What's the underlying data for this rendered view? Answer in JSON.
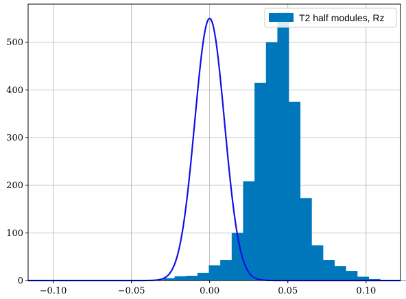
{
  "chart_data": {
    "type": "bar",
    "legend": {
      "label": "T2 half modules, Rz",
      "placement": "top-right"
    },
    "colors": {
      "bars": "#0077bb",
      "fit": "#1010e6",
      "grid": "#b0b0b0",
      "axis": "#000000"
    },
    "grid": true,
    "xlim": [
      -0.116,
      0.122
    ],
    "ylim": [
      0,
      580
    ],
    "x_ticks": [
      {
        "value": -0.1,
        "label": "−0.10"
      },
      {
        "value": -0.05,
        "label": "−0.05"
      },
      {
        "value": 0.0,
        "label": "0.00"
      },
      {
        "value": 0.05,
        "label": "0.05"
      },
      {
        "value": 0.1,
        "label": "0.10"
      }
    ],
    "y_ticks": [
      {
        "value": 0,
        "label": "0"
      },
      {
        "value": 100,
        "label": "100"
      },
      {
        "value": 200,
        "label": "200"
      },
      {
        "value": 300,
        "label": "300"
      },
      {
        "value": 400,
        "label": "400"
      },
      {
        "value": 500,
        "label": "500"
      }
    ],
    "bins": {
      "start": -0.11,
      "width": 0.0073,
      "counts": [
        1,
        1,
        1,
        1,
        1,
        1,
        1,
        1,
        1,
        1,
        1,
        5,
        9,
        10,
        16,
        32,
        43,
        100,
        208,
        415,
        500,
        563,
        375,
        173,
        74,
        43,
        30,
        20,
        8,
        3,
        1,
        1,
        1,
        1,
        1,
        1,
        1,
        1,
        1,
        1,
        1
      ]
    },
    "fit": {
      "type": "gaussian",
      "mean": 0.0,
      "sigma": 0.0095,
      "amplitude": 550
    }
  }
}
